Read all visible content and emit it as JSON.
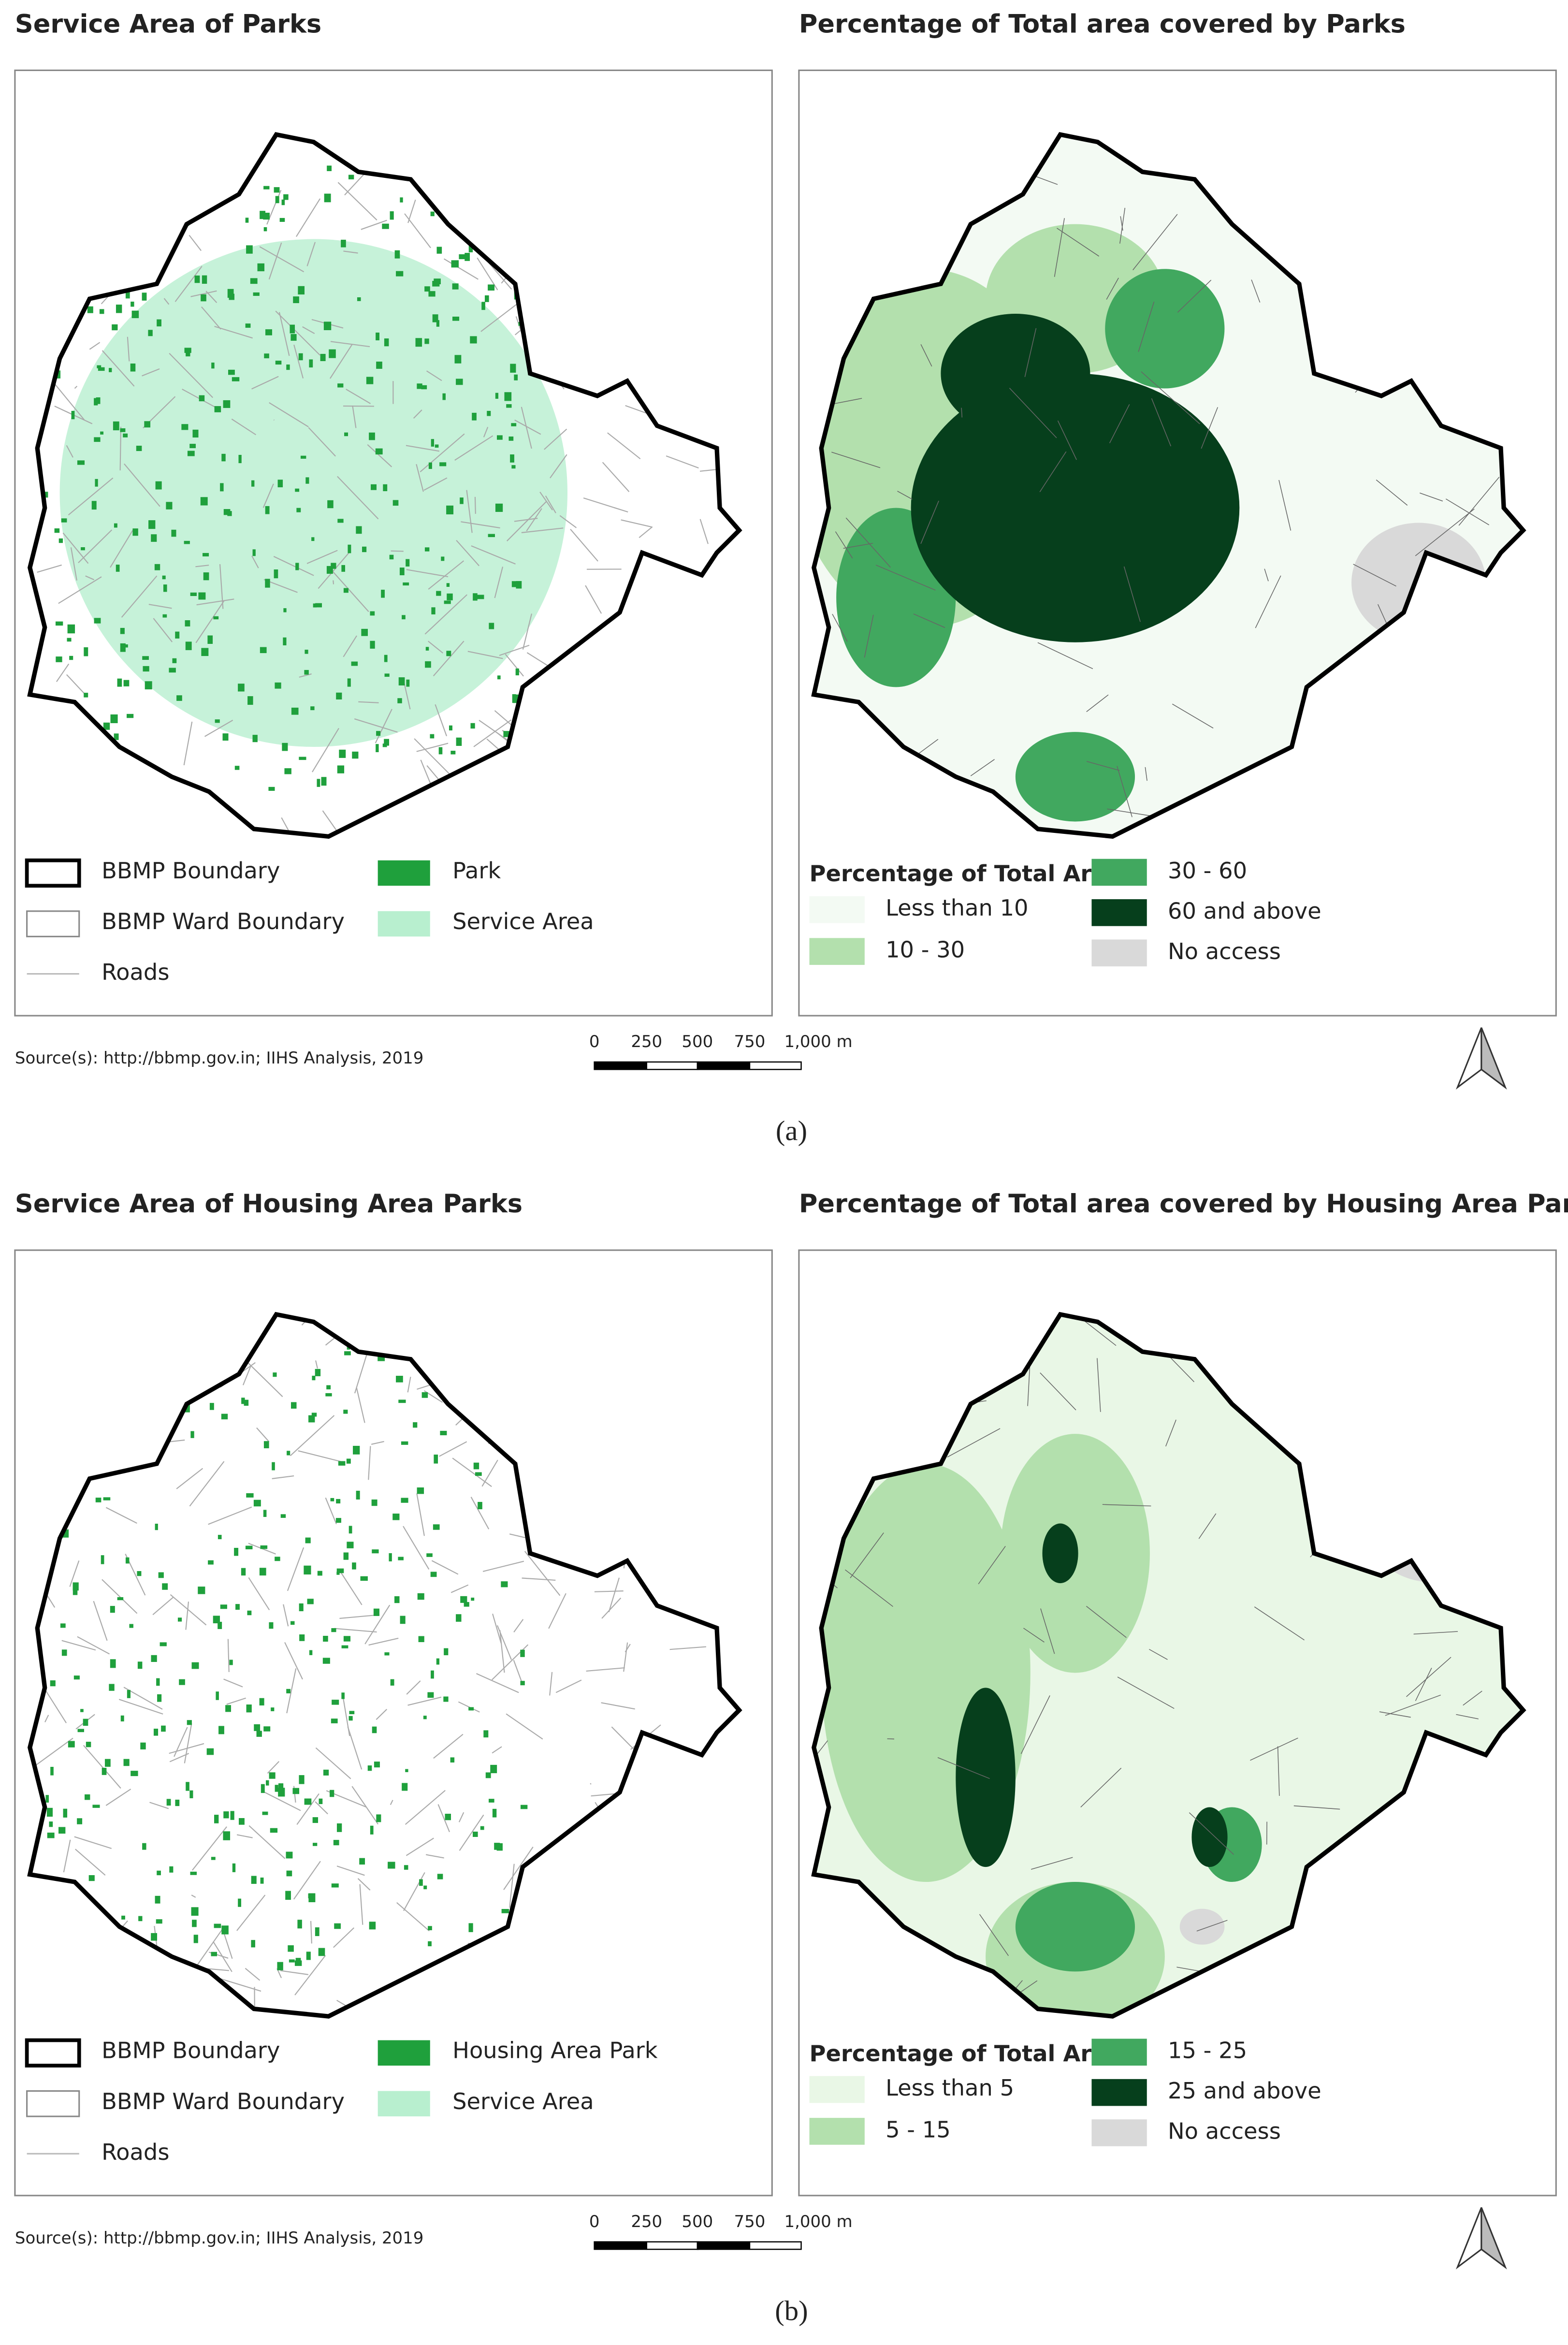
{
  "figures": [
    {
      "caption": "(a)",
      "left": {
        "title": "Service Area of Parks",
        "legend": [
          "BBMP Boundary",
          "BBMP Ward Boundary",
          "Roads",
          "Park",
          "Service Area"
        ]
      },
      "right": {
        "title": "Percentage of Total area covered by Parks",
        "legend_title": "Percentage of Total Area",
        "legend": [
          "Less than 10",
          "10 - 30",
          "30 - 60",
          "60 and above",
          "No access"
        ]
      },
      "source": "Source(s): http://bbmp.gov.in; IIHS Analysis, 2019",
      "scale_labels": [
        "0",
        "250",
        "500",
        "750",
        "1,000 m"
      ]
    },
    {
      "caption": "(b)",
      "left": {
        "title": "Service Area of Housing Area Parks",
        "legend": [
          "BBMP Boundary",
          "BBMP Ward Boundary",
          "Roads",
          "Housing Area Park",
          "Service Area"
        ]
      },
      "right": {
        "title": "Percentage of Total area covered by Housing Area Parks",
        "legend_title": "Percentage of Total Area",
        "legend": [
          "Less than 5",
          "5 - 15",
          "15 - 25",
          "25 and above",
          "No access"
        ]
      },
      "source": "Source(s): http://bbmp.gov.in; IIHS Analysis, 2019",
      "scale_labels": [
        "0",
        "250",
        "500",
        "750",
        "1,000 m"
      ]
    }
  ]
}
